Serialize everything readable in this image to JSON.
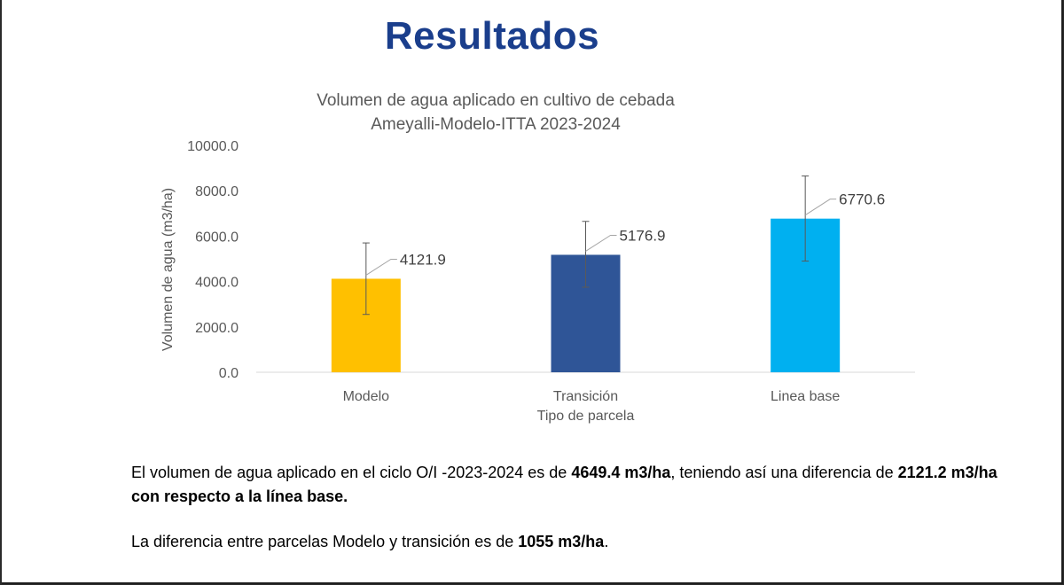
{
  "slide": {
    "title": "Resultados"
  },
  "chart_data": {
    "type": "bar",
    "title": "Volumen de agua aplicado en cultivo de cebada",
    "subtitle": "Ameyalli-Modelo-ITTA 2023-2024",
    "xlabel": "Tipo de parcela",
    "ylabel": "Volumen de agua (m3/ha)",
    "categories": [
      "Modelo",
      "Transición",
      "Linea base"
    ],
    "values": [
      4121.9,
      5176.9,
      6770.6
    ],
    "data_labels": [
      "4121.9",
      "5176.9",
      "6770.6"
    ],
    "error_bars": [
      [
        2550,
        5700
      ],
      [
        3750,
        6650
      ],
      [
        4900,
        8650
      ]
    ],
    "colors": [
      "#ffc000",
      "#2f5597",
      "#00b0f0"
    ],
    "ylim": [
      0,
      10000
    ],
    "yticks": [
      "0.0",
      "2000.0",
      "4000.0",
      "6000.0",
      "8000.0",
      "10000.0"
    ],
    "ytick_values": [
      0,
      2000,
      4000,
      6000,
      8000,
      10000
    ],
    "grid": false,
    "legend": "none"
  },
  "text": {
    "p1_a": "El volumen de agua aplicado en el ciclo O/I -2023-2024 es de ",
    "p1_b": "4649.4 m3/ha",
    "p1_c": ", teniendo así una diferencia de ",
    "p1_d": "2121.2 m3/ha con respecto a la línea base.",
    "p2_a": "La diferencia entre parcelas Modelo  y transición es de ",
    "p2_b": "1055 m3/ha",
    "p2_c": "."
  }
}
